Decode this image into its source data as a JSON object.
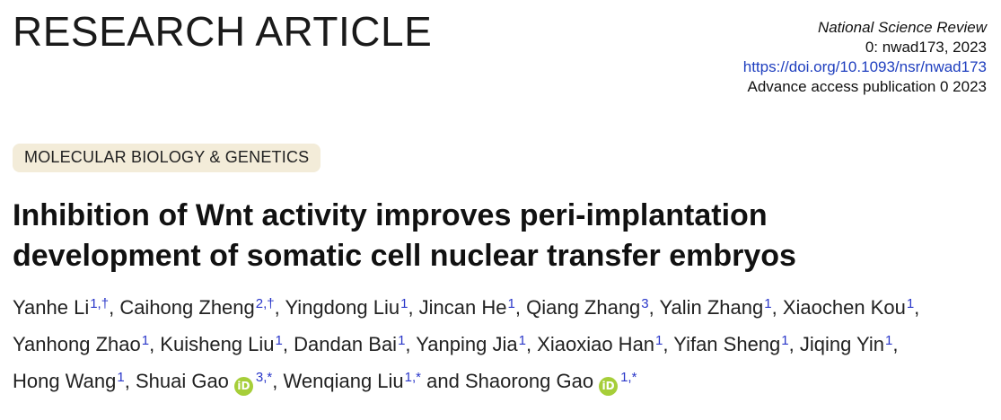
{
  "header": {
    "label": "RESEARCH ARTICLE"
  },
  "journal": {
    "name": "National Science Review",
    "volume": "0: nwad173, 2023",
    "doi": "https://doi.org/10.1093/nsr/nwad173",
    "access": "Advance access publication 0  2023"
  },
  "category": "MOLECULAR BIOLOGY & GENETICS",
  "title_lines": [
    "Inhibition of Wnt activity improves peri-implantation",
    "development of somatic cell nuclear transfer embryos"
  ],
  "colors": {
    "link": "#1f3fbf",
    "tag_bg": "#f3ecd9",
    "orcid": "#a6ce39"
  },
  "orcid_icon_text": "iD",
  "authors": [
    {
      "name": "Yanhe Li",
      "sup": "1,†",
      "orcid": false,
      "sep": ", "
    },
    {
      "name": "Caihong Zheng",
      "sup": "2,†",
      "orcid": false,
      "sep": ", "
    },
    {
      "name": "Yingdong Liu",
      "sup": "1",
      "orcid": false,
      "sep": ", "
    },
    {
      "name": "Jincan He",
      "sup": "1",
      "orcid": false,
      "sep": ", "
    },
    {
      "name": "Qiang Zhang",
      "sup": "3",
      "orcid": false,
      "sep": ", "
    },
    {
      "name": "Yalin Zhang",
      "sup": "1",
      "orcid": false,
      "sep": ", "
    },
    {
      "name": "Xiaochen Kou",
      "sup": "1",
      "orcid": false,
      "sep": ", "
    },
    {
      "name": "Yanhong Zhao",
      "sup": "1",
      "orcid": false,
      "sep": ", "
    },
    {
      "name": "Kuisheng Liu",
      "sup": "1",
      "orcid": false,
      "sep": ", "
    },
    {
      "name": "Dandan Bai",
      "sup": "1",
      "orcid": false,
      "sep": ", "
    },
    {
      "name": "Yanping Jia",
      "sup": "1",
      "orcid": false,
      "sep": ", "
    },
    {
      "name": "Xiaoxiao Han",
      "sup": "1",
      "orcid": false,
      "sep": ", "
    },
    {
      "name": "Yifan Sheng",
      "sup": "1",
      "orcid": false,
      "sep": ", "
    },
    {
      "name": "Jiqing Yin",
      "sup": "1",
      "orcid": false,
      "sep": ", "
    },
    {
      "name": "Hong Wang",
      "sup": "1",
      "orcid": false,
      "sep": ", "
    },
    {
      "name": "Shuai Gao",
      "sup": "3,*",
      "orcid": true,
      "sep": ", "
    },
    {
      "name": "Wenqiang Liu",
      "sup": "1,*",
      "orcid": false,
      "sep": " and "
    },
    {
      "name": "Shaorong Gao",
      "sup": "1,*",
      "orcid": true,
      "sep": ""
    }
  ]
}
